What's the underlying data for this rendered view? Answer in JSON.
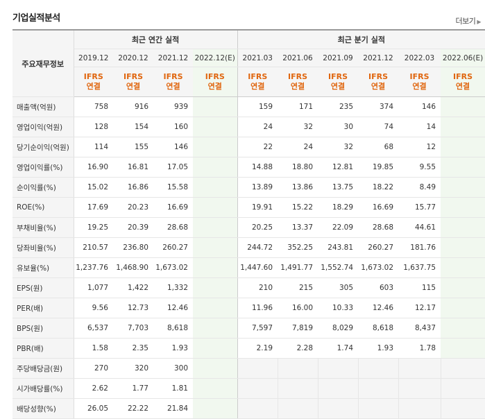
{
  "title": "기업실적분석",
  "more_label": "더보기",
  "headers": {
    "row_label": "주요재무정보",
    "annual_group": "최근 연간 실적",
    "quarterly_group": "최근 분기 실적",
    "annual_periods": [
      "2019.12",
      "2020.12",
      "2021.12",
      "2022.12(E)"
    ],
    "quarterly_periods": [
      "2021.03",
      "2021.06",
      "2021.09",
      "2021.12",
      "2022.03",
      "2022.06(E)"
    ],
    "ifrs_top": "IFRS",
    "ifrs_bottom": "연결"
  },
  "rows": [
    {
      "label": "매출액(억원)",
      "annual": [
        "758",
        "916",
        "939",
        ""
      ],
      "quarterly": [
        "159",
        "171",
        "235",
        "374",
        "146",
        ""
      ]
    },
    {
      "label": "영업이익(억원)",
      "annual": [
        "128",
        "154",
        "160",
        ""
      ],
      "quarterly": [
        "24",
        "32",
        "30",
        "74",
        "14",
        ""
      ]
    },
    {
      "label": "당기순이익(억원)",
      "annual": [
        "114",
        "155",
        "146",
        ""
      ],
      "quarterly": [
        "22",
        "24",
        "32",
        "68",
        "12",
        ""
      ]
    },
    {
      "label": "영업이익률(%)",
      "annual": [
        "16.90",
        "16.81",
        "17.05",
        ""
      ],
      "quarterly": [
        "14.88",
        "18.80",
        "12.81",
        "19.85",
        "9.55",
        ""
      ]
    },
    {
      "label": "순이익률(%)",
      "annual": [
        "15.02",
        "16.86",
        "15.58",
        ""
      ],
      "quarterly": [
        "13.89",
        "13.86",
        "13.75",
        "18.22",
        "8.49",
        ""
      ]
    },
    {
      "label": "ROE(%)",
      "annual": [
        "17.69",
        "20.23",
        "16.69",
        ""
      ],
      "quarterly": [
        "19.91",
        "15.22",
        "18.29",
        "16.69",
        "15.77",
        ""
      ]
    },
    {
      "label": "부채비율(%)",
      "annual": [
        "19.25",
        "20.39",
        "28.68",
        ""
      ],
      "quarterly": [
        "20.25",
        "13.37",
        "22.09",
        "28.68",
        "44.61",
        ""
      ]
    },
    {
      "label": "당좌비율(%)",
      "annual": [
        "210.57",
        "236.80",
        "260.27",
        ""
      ],
      "quarterly": [
        "244.72",
        "352.25",
        "243.81",
        "260.27",
        "181.76",
        ""
      ]
    },
    {
      "label": "유보율(%)",
      "annual": [
        "1,237.76",
        "1,468.90",
        "1,673.02",
        ""
      ],
      "quarterly": [
        "1,447.60",
        "1,491.77",
        "1,552.74",
        "1,673.02",
        "1,637.75",
        ""
      ]
    },
    {
      "label": "EPS(원)",
      "annual": [
        "1,077",
        "1,422",
        "1,332",
        ""
      ],
      "quarterly": [
        "210",
        "215",
        "305",
        "603",
        "115",
        ""
      ]
    },
    {
      "label": "PER(배)",
      "annual": [
        "9.56",
        "12.73",
        "12.46",
        ""
      ],
      "quarterly": [
        "11.96",
        "16.00",
        "10.33",
        "12.46",
        "12.17",
        ""
      ]
    },
    {
      "label": "BPS(원)",
      "annual": [
        "6,537",
        "7,703",
        "8,618",
        ""
      ],
      "quarterly": [
        "7,597",
        "7,819",
        "8,029",
        "8,618",
        "8,437",
        ""
      ]
    },
    {
      "label": "PBR(배)",
      "annual": [
        "1.58",
        "2.35",
        "1.93",
        ""
      ],
      "quarterly": [
        "2.19",
        "2.28",
        "1.74",
        "1.93",
        "1.78",
        ""
      ]
    },
    {
      "label": "주당배당금(원)",
      "annual": [
        "270",
        "320",
        "300",
        ""
      ],
      "quarterly": null
    },
    {
      "label": "시가배당률(%)",
      "annual": [
        "2.62",
        "1.77",
        "1.81",
        ""
      ],
      "quarterly": null
    },
    {
      "label": "배당성향(%)",
      "annual": [
        "26.05",
        "22.22",
        "21.84",
        ""
      ],
      "quarterly": null
    }
  ]
}
